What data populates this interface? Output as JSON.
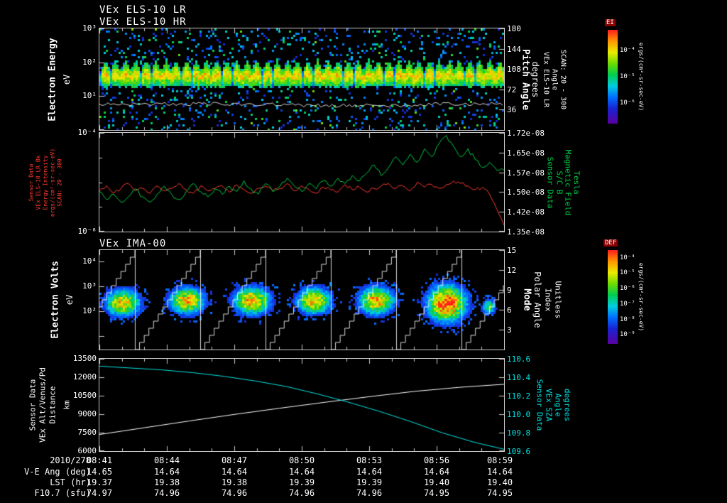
{
  "titles": {
    "els_lr": "VEx ELS-10 LR",
    "els_hr": "VEx ELS-10 HR",
    "ima": "VEx IMA-00"
  },
  "colorbars": [
    {
      "label": "EI",
      "units": "ergs/(cm²-sr-sec-eV)",
      "ticks": [
        {
          "label": "10⁻⁴",
          "f": 0.22
        },
        {
          "label": "10⁻⁵",
          "f": 0.5
        },
        {
          "label": "10⁻⁶",
          "f": 0.78
        }
      ]
    },
    {
      "label": "DEF",
      "units": "ergs/(cm²-sr-sec-eV)",
      "ticks": [
        {
          "label": "10⁻⁴",
          "f": 0.08
        },
        {
          "label": "10⁻⁵",
          "f": 0.245
        },
        {
          "label": "10⁻⁶",
          "f": 0.41
        },
        {
          "label": "10⁻⁷",
          "f": 0.575
        },
        {
          "label": "10⁻⁸",
          "f": 0.74
        },
        {
          "label": "10⁻⁹",
          "f": 0.905
        }
      ]
    }
  ],
  "panels": [
    {
      "left_title_lines": [
        "Electron Energy",
        "eV"
      ],
      "left_color": "#ffffff",
      "left_tick_color": "#ffffff",
      "left_ticks": [
        {
          "label": "10³",
          "f": 0
        },
        {
          "label": "10²",
          "f": 0.333
        },
        {
          "label": "10¹",
          "f": 0.667
        }
      ],
      "right_ticks": [
        {
          "label": "180",
          "f": 0
        },
        {
          "label": "144",
          "f": 0.2
        },
        {
          "label": "108",
          "f": 0.4
        },
        {
          "label": "72",
          "f": 0.6
        },
        {
          "label": "36",
          "f": 0.8
        }
      ],
      "right_title_lines": [
        "Pitch Angle",
        "degrees",
        "VEx ELS-10 LR",
        "Angle",
        "SCAN: 20 - 300"
      ],
      "right_color": "#ffffff",
      "right_tick_color": "#ffffff"
    },
    {
      "left_title_lines": [
        "Sensor Data",
        "VEx ELS-10 LR Bk",
        "Energy Intensity",
        "ergs/(cm²-sr-sec-eV)",
        "SCAN: 20 - 300"
      ],
      "left_color": "#ff3b30",
      "left_tick_color": "#ffffff",
      "left_ticks": [
        {
          "label": "10⁻⁴",
          "f": 0
        },
        {
          "label": "10⁻⁸",
          "f": 1
        }
      ],
      "right_ticks": [
        {
          "label": "1.72e-08",
          "f": 0
        },
        {
          "label": "1.65e-08",
          "f": 0.2
        },
        {
          "label": "1.57e-08",
          "f": 0.4
        },
        {
          "label": "1.50e-08",
          "f": 0.6
        },
        {
          "label": "1.42e-08",
          "f": 0.8
        },
        {
          "label": "1.35e-08",
          "f": 1
        }
      ],
      "right_title_lines": [
        "Sensor Data",
        "S/C B",
        "Magnetic Field",
        "Tesla"
      ],
      "right_color": "#00cc44",
      "right_tick_color": "#ffffff"
    },
    {
      "left_title_lines": [
        "Electron Volts",
        "eV"
      ],
      "left_color": "#ffffff",
      "left_tick_color": "#ffffff",
      "left_ticks": [
        {
          "label": "10⁴",
          "f": 0.114
        },
        {
          "label": "10³",
          "f": 0.364
        },
        {
          "label": "10²",
          "f": 0.614
        }
      ],
      "right_ticks": [
        {
          "label": "15",
          "f": 0
        },
        {
          "label": "12",
          "f": 0.2
        },
        {
          "label": "9",
          "f": 0.4
        },
        {
          "label": "6",
          "f": 0.6
        },
        {
          "label": "3",
          "f": 0.8
        }
      ],
      "right_title_lines": [
        "Mode",
        "Polar Angle",
        "Index",
        "Unitless"
      ],
      "right_color": "#ffffff",
      "right_tick_color": "#ffffff"
    },
    {
      "left_title_lines": [
        "Sensor Data",
        "VEx Alt/Venus/Pd",
        "Distance",
        "km"
      ],
      "left_color": "#ffffff",
      "left_tick_color": "#ffffff",
      "left_ticks": [
        {
          "label": "13500",
          "f": 0
        },
        {
          "label": "12000",
          "f": 0.2
        },
        {
          "label": "10500",
          "f": 0.4
        },
        {
          "label": "9000",
          "f": 0.6
        },
        {
          "label": "7500",
          "f": 0.8
        },
        {
          "label": "6000",
          "f": 1
        }
      ],
      "right_ticks": [
        {
          "label": "110.6",
          "f": 0
        },
        {
          "label": "110.4",
          "f": 0.2
        },
        {
          "label": "110.2",
          "f": 0.4
        },
        {
          "label": "110.0",
          "f": 0.6
        },
        {
          "label": "109.8",
          "f": 0.8
        },
        {
          "label": "109.6",
          "f": 1
        }
      ],
      "right_title_lines": [
        "Sensor Data",
        "VEx SZA",
        "Angle",
        "degrees"
      ],
      "right_color": "#00e5e5",
      "right_tick_color": "#00e5e5"
    }
  ],
  "bottom": {
    "date": "2010/278",
    "times": [
      "08:41",
      "08:44",
      "08:47",
      "08:50",
      "08:53",
      "08:56",
      "08:59"
    ],
    "rows": [
      {
        "label": "V-E Ang (deg)",
        "values": [
          "14.65",
          "14.64",
          "14.64",
          "14.64",
          "14.64",
          "14.64",
          "14.64"
        ]
      },
      {
        "label": "LST (hr)",
        "values": [
          "19.37",
          "19.38",
          "19.38",
          "19.39",
          "19.39",
          "19.40",
          "19.40"
        ]
      },
      {
        "label": "F10.7 (sfu)",
        "values": [
          "74.97",
          "74.96",
          "74.96",
          "74.96",
          "74.96",
          "74.95",
          "74.95"
        ]
      }
    ]
  },
  "chart_data": [
    {
      "type": "heatmap",
      "panel": 1,
      "title": "VEx ELS-10 LR / VEx ELS-10 HR electron energy spectrogram",
      "ylabel": "Electron Energy (eV)",
      "yscale": "log",
      "ytick_values": [
        1000,
        100,
        10
      ],
      "right_axis": {
        "label": "Pitch Angle (degrees)",
        "ticks": [
          180,
          144,
          108,
          72,
          36
        ]
      },
      "time_range": [
        "08:41",
        "08:59"
      ],
      "colorbar": "EI",
      "units": "ergs/(cm²-sr-sec-eV)",
      "features": {
        "band_top_frac": 0.3,
        "flame_amp": 0.1,
        "band_bottom_frac": 0.565,
        "scan_period_frac": 0.025,
        "speckle_density": 0.11,
        "white_trace_frac": 0.745,
        "band_energy_ev": [
          15,
          80
        ]
      }
    },
    {
      "type": "line",
      "panel": 2,
      "series": [
        {
          "name": "VEx ELS-10 LR Bk Energy Intensity",
          "color": "#ff3b30",
          "yscale": "log",
          "yrange_log10": [
            -8,
            -4
          ],
          "values_log10": [
            -6.35,
            -6.15,
            -6.45,
            -6.25,
            -6.05,
            -6.35,
            -6.25,
            -6.45,
            -6.15,
            -6.35,
            -6.25,
            -6.05,
            -6.3,
            -6.45,
            -6.15,
            -6.35,
            -6.25,
            -6.15,
            -6.4,
            -6.1,
            -6.3,
            -6.45,
            -6.25,
            -6.15,
            -6.35,
            -6.25,
            -6.05,
            -6.35,
            -6.15,
            -6.3,
            -6.45,
            -6.2,
            -6.3,
            -6.4,
            -6.1,
            -6.3,
            -6.2,
            -6.4,
            -6.25,
            -6.15,
            -6.05,
            -6.25,
            -6.15,
            -6.35,
            -6.0,
            -6.2,
            -6.1,
            -6.25,
            -6.1,
            -5.95,
            -6.05,
            -6.15,
            -6.3,
            -6.2,
            -6.5,
            -7.1,
            -7.75
          ]
        },
        {
          "name": "S/C B Magnetic Field (Tesla)",
          "color": "#00cc44",
          "yrange": [
            1.35e-08,
            1.72e-08
          ],
          "values_x1e8": [
            1.5,
            1.47,
            1.49,
            1.46,
            1.48,
            1.51,
            1.48,
            1.46,
            1.49,
            1.52,
            1.49,
            1.47,
            1.5,
            1.53,
            1.5,
            1.48,
            1.51,
            1.49,
            1.52,
            1.5,
            1.54,
            1.51,
            1.49,
            1.53,
            1.5,
            1.52,
            1.55,
            1.52,
            1.5,
            1.53,
            1.51,
            1.54,
            1.52,
            1.55,
            1.53,
            1.56,
            1.54,
            1.57,
            1.6,
            1.56,
            1.59,
            1.63,
            1.6,
            1.64,
            1.61,
            1.66,
            1.63,
            1.68,
            1.71,
            1.67,
            1.63,
            1.66,
            1.62,
            1.59,
            1.61,
            1.58,
            1.58
          ]
        }
      ]
    },
    {
      "type": "heatmap",
      "panel": 3,
      "title": "VEx IMA-00 ion spectrogram",
      "ylabel": "Electron Volts (eV)",
      "yscale": "log",
      "ytick_values": [
        10000,
        1000,
        100
      ],
      "right_axis": {
        "label": "Mode Polar Angle Index (Unitless)",
        "ticks": [
          15,
          12,
          9,
          6,
          3
        ]
      },
      "colorbar": "DEF",
      "units": "ergs/(cm²-sr-sec-eV)",
      "features": {
        "sweep_period_frac": 0.1614,
        "sweep_offset_frac": 0.0877,
        "blobs": [
          {
            "cx": 0.055,
            "cy": 0.52,
            "rx": 0.045,
            "ry": 0.14,
            "peak": 0.8
          },
          {
            "cx": 0.215,
            "cy": 0.5,
            "rx": 0.046,
            "ry": 0.14,
            "peak": 0.82
          },
          {
            "cx": 0.375,
            "cy": 0.5,
            "rx": 0.048,
            "ry": 0.145,
            "peak": 0.84
          },
          {
            "cx": 0.528,
            "cy": 0.5,
            "rx": 0.044,
            "ry": 0.14,
            "peak": 0.82
          },
          {
            "cx": 0.682,
            "cy": 0.5,
            "rx": 0.046,
            "ry": 0.145,
            "peak": 0.84
          },
          {
            "cx": 0.856,
            "cy": 0.53,
            "rx": 0.05,
            "ry": 0.19,
            "peak": 1.0
          },
          {
            "cx": 0.96,
            "cy": 0.56,
            "rx": 0.018,
            "ry": 0.08,
            "peak": 0.55
          }
        ]
      }
    },
    {
      "type": "line",
      "panel": 4,
      "series": [
        {
          "name": "VEx Alt/Venus/Pd Distance (km)",
          "color": "#ffffff",
          "yrange": [
            6000,
            13500
          ],
          "values": [
            7350,
            7900,
            8450,
            8980,
            9480,
            9960,
            10420,
            10850,
            11180,
            11430
          ]
        },
        {
          "name": "VEx SZA Angle (degrees)",
          "color": "#00e5e5",
          "yrange": [
            109.6,
            110.6
          ],
          "values": [
            110.52,
            110.5,
            110.48,
            110.45,
            110.41,
            110.36,
            110.3,
            110.22,
            110.13,
            110.03,
            109.92,
            109.8,
            109.7,
            109.62
          ]
        }
      ]
    }
  ]
}
